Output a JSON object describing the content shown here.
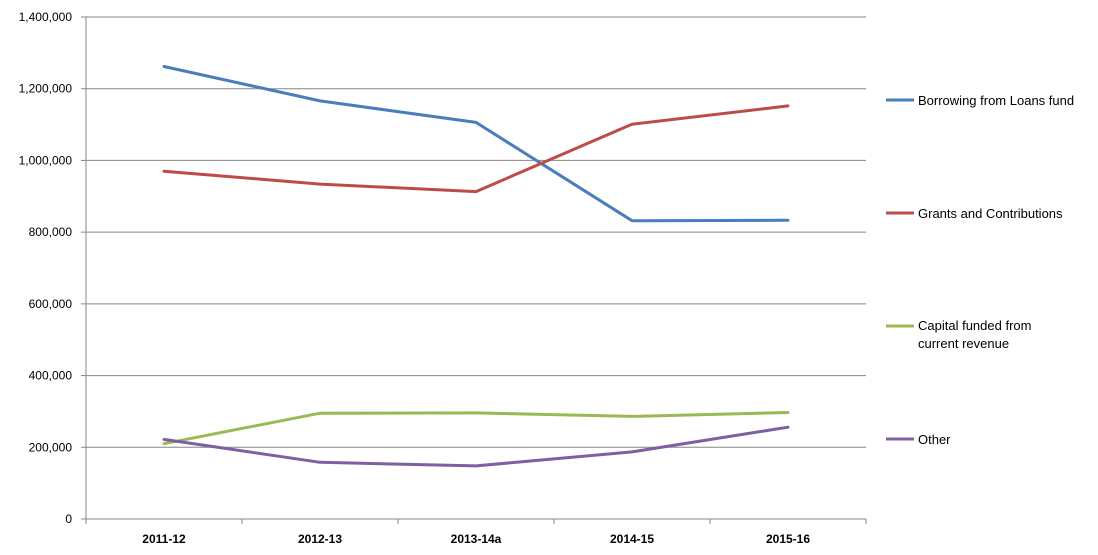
{
  "chart_data": {
    "type": "line",
    "categories": [
      "2011-12",
      "2012-13",
      "2013-14a",
      "2014-15",
      "2015-16"
    ],
    "y_ticks": [
      "0",
      "200,000",
      "400,000",
      "600,000",
      "800,000",
      "1,000,000",
      "1,200,000",
      "1,400,000"
    ],
    "ylim": [
      0,
      1400000
    ],
    "grid": "horizontal",
    "legend_position": "right",
    "series": [
      {
        "name": "Borrowing from Loans fund",
        "color": "#4a7ebb",
        "values": [
          1262000,
          1166000,
          1106000,
          832000,
          833000
        ]
      },
      {
        "name": "Grants and Contributions",
        "color": "#be4b48",
        "values": [
          970000,
          934000,
          913000,
          1101000,
          1152000
        ]
      },
      {
        "name": "Capital funded from current revenue",
        "name_lines": [
          "Capital funded from",
          "current revenue"
        ],
        "color": "#98b954",
        "values": [
          210000,
          295000,
          296000,
          286000,
          297000
        ]
      },
      {
        "name": "Other",
        "color": "#7d60a0",
        "values": [
          222000,
          158000,
          148000,
          187000,
          256000
        ]
      }
    ]
  }
}
